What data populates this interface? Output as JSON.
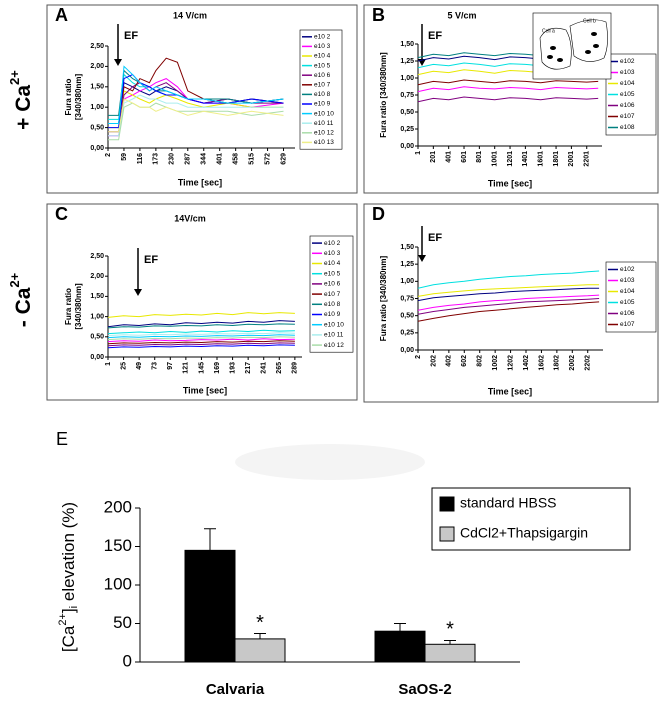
{
  "row_labels": [
    [
      "+ Ca",
      "2+"
    ],
    [
      "- Ca",
      "2+"
    ]
  ],
  "chart_data": [
    {
      "type": "line",
      "panel_label": "A",
      "title": "14 V/cm",
      "annotation": "EF",
      "x_label": "Time [sec]",
      "y_label": [
        "Fura ratio",
        "[340/380nm]"
      ],
      "xlim": [
        2,
        670
      ],
      "xticks": [
        2,
        59,
        116,
        173,
        230,
        287,
        344,
        401,
        458,
        515,
        572,
        629
      ],
      "ylim": [
        0,
        2.5
      ],
      "yticks": [
        {
          "value": 0,
          "label": "0,00"
        },
        {
          "value": 0.5,
          "label": "0,50"
        },
        {
          "value": 1,
          "label": "1,00"
        },
        {
          "value": 1.5,
          "label": "1,50"
        },
        {
          "value": 2,
          "label": "2,00"
        },
        {
          "value": 2.5,
          "label": "2,50"
        }
      ],
      "x": [
        2,
        40,
        59,
        90,
        116,
        150,
        173,
        210,
        250,
        287,
        344,
        430,
        515,
        629
      ],
      "series": [
        {
          "name": "e10 2",
          "color": "#000080",
          "values": [
            0.6,
            0.6,
            1.6,
            1.5,
            1.4,
            1.3,
            1.4,
            1.5,
            1.4,
            1.2,
            1.1,
            1.2,
            1.1,
            1.2
          ]
        },
        {
          "name": "e10 3",
          "color": "#ff00ff",
          "values": [
            0.3,
            0.3,
            1.2,
            1.3,
            1.4,
            1.5,
            1.6,
            1.7,
            1.5,
            1.2,
            1.1,
            1.1,
            1.0,
            1.1
          ]
        },
        {
          "name": "e10 4",
          "color": "#e8e800",
          "values": [
            0.5,
            0.5,
            1.4,
            1.3,
            1.2,
            1.1,
            1.2,
            1.3,
            1.2,
            1.1,
            1.0,
            1.1,
            1.0,
            1.0
          ]
        },
        {
          "name": "e10 5",
          "color": "#00e0e0",
          "values": [
            0.7,
            0.7,
            1.8,
            1.6,
            1.5,
            1.5,
            1.4,
            1.3,
            1.3,
            1.2,
            1.2,
            1.1,
            1.2,
            1.1
          ]
        },
        {
          "name": "e10 6",
          "color": "#800080",
          "values": [
            0.4,
            0.4,
            1.3,
            1.5,
            1.6,
            1.4,
            1.5,
            1.6,
            1.4,
            1.2,
            1.1,
            1.2,
            1.1,
            1.1
          ]
        },
        {
          "name": "e10 7",
          "color": "#800000",
          "values": [
            0.6,
            0.6,
            1.5,
            1.4,
            1.7,
            1.6,
            1.9,
            2.2,
            2.1,
            1.4,
            1.2,
            1.1,
            1.2,
            1.1
          ]
        },
        {
          "name": "e10 8",
          "color": "#008080",
          "values": [
            0.8,
            0.8,
            1.9,
            1.7,
            1.6,
            1.5,
            1.4,
            1.4,
            1.3,
            1.2,
            1.2,
            1.2,
            1.1,
            1.2
          ]
        },
        {
          "name": "e10 9",
          "color": "#0000ff",
          "values": [
            0.5,
            0.5,
            1.7,
            1.8,
            1.6,
            1.5,
            1.4,
            1.3,
            1.3,
            1.2,
            1.1,
            1.1,
            1.2,
            1.1
          ]
        },
        {
          "name": "e10 10",
          "color": "#00ccff",
          "values": [
            0.6,
            0.6,
            2.0,
            1.8,
            1.6,
            1.4,
            1.5,
            1.4,
            1.3,
            1.2,
            1.2,
            1.1,
            1.1,
            1.2
          ]
        },
        {
          "name": "e10 11",
          "color": "#aaeeee",
          "values": [
            0.3,
            0.3,
            1.1,
            1.2,
            1.3,
            1.2,
            1.2,
            1.1,
            1.1,
            1.0,
            1.0,
            1.0,
            1.0,
            1.0
          ]
        },
        {
          "name": "e10 12",
          "color": "#aaddaa",
          "values": [
            0.2,
            0.2,
            1.0,
            1.1,
            1.0,
            1.0,
            1.1,
            1.0,
            0.9,
            0.9,
            0.9,
            0.9,
            0.8,
            0.9
          ]
        },
        {
          "name": "e10 13",
          "color": "#eeee88",
          "values": [
            0.4,
            0.4,
            1.2,
            1.1,
            1.0,
            1.0,
            0.9,
            1.0,
            0.9,
            0.8,
            0.9,
            0.8,
            0.9,
            0.8
          ]
        }
      ]
    },
    {
      "type": "line",
      "panel_label": "B",
      "title": "5 V/cm",
      "annotation": "EF",
      "inset_labels": [
        "Cell a",
        "Cell b"
      ],
      "x_label": "Time [sec]",
      "y_label": [
        "Fura ratio [340/380nm]"
      ],
      "xlim": [
        1,
        2400
      ],
      "xticks": [
        1,
        201,
        401,
        601,
        801,
        1001,
        1201,
        1401,
        1601,
        1801,
        2001,
        2201
      ],
      "ylim": [
        0,
        1.5
      ],
      "yticks": [
        {
          "value": 0,
          "label": "0,00"
        },
        {
          "value": 0.25,
          "label": "0,25"
        },
        {
          "value": 0.5,
          "label": "0,50"
        },
        {
          "value": 0.75,
          "label": "0,75"
        },
        {
          "value": 1,
          "label": "1,00"
        },
        {
          "value": 1.25,
          "label": "1,25"
        },
        {
          "value": 1.5,
          "label": "1,50"
        }
      ],
      "x": [
        1,
        201,
        401,
        601,
        801,
        1001,
        1201,
        1401,
        1601,
        1801,
        2001,
        2201,
        2350
      ],
      "series": [
        {
          "name": "e102",
          "color": "#000080",
          "values": [
            1.25,
            1.3,
            1.28,
            1.32,
            1.3,
            1.27,
            1.31,
            1.3,
            1.28,
            1.32,
            1.3,
            1.29,
            1.3
          ]
        },
        {
          "name": "e103",
          "color": "#ff00ff",
          "values": [
            0.8,
            0.85,
            0.83,
            0.87,
            0.85,
            0.84,
            0.86,
            0.85,
            0.83,
            0.86,
            0.85,
            0.84,
            0.85
          ]
        },
        {
          "name": "e104",
          "color": "#e8e800",
          "values": [
            1.05,
            1.1,
            1.08,
            1.12,
            1.1,
            1.07,
            1.11,
            1.1,
            1.08,
            1.12,
            1.1,
            1.09,
            1.1
          ]
        },
        {
          "name": "e105",
          "color": "#00e0e0",
          "values": [
            1.15,
            1.2,
            1.18,
            1.22,
            1.2,
            1.17,
            1.21,
            1.2,
            1.18,
            1.22,
            1.2,
            1.19,
            1.2
          ]
        },
        {
          "name": "e106",
          "color": "#800080",
          "values": [
            0.65,
            0.7,
            0.68,
            0.72,
            0.7,
            0.68,
            0.71,
            0.7,
            0.68,
            0.71,
            0.7,
            0.69,
            0.7
          ]
        },
        {
          "name": "e107",
          "color": "#800000",
          "values": [
            0.9,
            0.95,
            0.93,
            0.97,
            0.95,
            0.93,
            0.96,
            0.95,
            0.93,
            0.96,
            0.95,
            0.94,
            0.95
          ]
        },
        {
          "name": "e108",
          "color": "#008080",
          "values": [
            1.3,
            1.35,
            1.33,
            1.37,
            1.35,
            1.33,
            1.36,
            1.35,
            1.33,
            1.36,
            1.35,
            1.34,
            1.35
          ]
        }
      ]
    },
    {
      "type": "line",
      "panel_label": "C",
      "title": "14V/cm",
      "annotation": "EF",
      "x_label": "Time [sec]",
      "y_label": [
        "Fura ratio",
        "[340/380nm]"
      ],
      "xlim": [
        1,
        300
      ],
      "xticks": [
        1,
        25,
        49,
        73,
        97,
        121,
        145,
        169,
        193,
        217,
        241,
        265,
        289
      ],
      "ylim": [
        0,
        2.5
      ],
      "yticks": [
        {
          "value": 0,
          "label": "0,00"
        },
        {
          "value": 0.5,
          "label": "0,50"
        },
        {
          "value": 1,
          "label": "1,00"
        },
        {
          "value": 1.5,
          "label": "1,50"
        },
        {
          "value": 2,
          "label": "2,00"
        },
        {
          "value": 2.5,
          "label": "2,50"
        }
      ],
      "x": [
        1,
        25,
        49,
        73,
        97,
        121,
        145,
        169,
        193,
        217,
        241,
        265,
        289
      ],
      "series": [
        {
          "name": "e10 2",
          "color": "#000080",
          "values": [
            0.75,
            0.8,
            0.78,
            0.82,
            0.8,
            0.85,
            0.83,
            0.86,
            0.84,
            0.88,
            0.86,
            0.9,
            0.88
          ]
        },
        {
          "name": "e10 3",
          "color": "#ff00ff",
          "values": [
            0.38,
            0.4,
            0.39,
            0.42,
            0.4,
            0.41,
            0.43,
            0.42,
            0.44,
            0.42,
            0.45,
            0.43,
            0.44
          ]
        },
        {
          "name": "e10 4",
          "color": "#e8e800",
          "values": [
            0.98,
            1.02,
            1.0,
            1.05,
            1.03,
            1.06,
            1.04,
            1.08,
            1.05,
            1.1,
            1.07,
            1.1,
            1.08
          ]
        },
        {
          "name": "e10 5",
          "color": "#00e0e0",
          "values": [
            0.58,
            0.6,
            0.62,
            0.6,
            0.63,
            0.61,
            0.64,
            0.62,
            0.65,
            0.63,
            0.66,
            0.64,
            0.65
          ]
        },
        {
          "name": "e10 6",
          "color": "#800080",
          "values": [
            0.28,
            0.3,
            0.29,
            0.31,
            0.3,
            0.32,
            0.31,
            0.33,
            0.32,
            0.34,
            0.33,
            0.35,
            0.34
          ]
        },
        {
          "name": "e10 7",
          "color": "#800000",
          "values": [
            0.33,
            0.35,
            0.34,
            0.36,
            0.35,
            0.37,
            0.36,
            0.38,
            0.37,
            0.39,
            0.38,
            0.4,
            0.39
          ]
        },
        {
          "name": "e10 8",
          "color": "#008080",
          "values": [
            0.72,
            0.75,
            0.74,
            0.77,
            0.76,
            0.78,
            0.77,
            0.8,
            0.78,
            0.81,
            0.8,
            0.82,
            0.81
          ]
        },
        {
          "name": "e10 9",
          "color": "#0000ff",
          "values": [
            0.23,
            0.25,
            0.24,
            0.26,
            0.25,
            0.27,
            0.26,
            0.28,
            0.27,
            0.29,
            0.28,
            0.3,
            0.29
          ]
        },
        {
          "name": "e10 10",
          "color": "#00ccff",
          "values": [
            0.48,
            0.5,
            0.49,
            0.51,
            0.5,
            0.52,
            0.51,
            0.53,
            0.52,
            0.54,
            0.53,
            0.55,
            0.54
          ]
        },
        {
          "name": "e10 11",
          "color": "#aaeeee",
          "values": [
            0.53,
            0.55,
            0.54,
            0.56,
            0.55,
            0.57,
            0.56,
            0.58,
            0.57,
            0.59,
            0.58,
            0.6,
            0.59
          ]
        },
        {
          "name": "e10 12",
          "color": "#aaddaa",
          "values": [
            0.43,
            0.45,
            0.44,
            0.46,
            0.45,
            0.47,
            0.46,
            0.48,
            0.47,
            0.49,
            0.48,
            0.5,
            0.49
          ]
        }
      ]
    },
    {
      "type": "line",
      "panel_label": "D",
      "annotation": "EF",
      "x_label": "Time [sec]",
      "y_label": [
        "Fura ratio [340/380nm]"
      ],
      "xlim": [
        2,
        2400
      ],
      "xticks": [
        2,
        202,
        402,
        602,
        802,
        1002,
        1202,
        1402,
        1602,
        1802,
        2002,
        2202
      ],
      "ylim": [
        0,
        1.5
      ],
      "yticks": [
        {
          "value": 0,
          "label": "0,00"
        },
        {
          "value": 0.25,
          "label": "0,25"
        },
        {
          "value": 0.5,
          "label": "0,50"
        },
        {
          "value": 0.75,
          "label": "0,75"
        },
        {
          "value": 1,
          "label": "1,00"
        },
        {
          "value": 1.25,
          "label": "1,25"
        },
        {
          "value": 1.5,
          "label": "1,50"
        }
      ],
      "x": [
        2,
        202,
        402,
        602,
        802,
        1002,
        1202,
        1402,
        1602,
        1802,
        2002,
        2202,
        2350
      ],
      "series": [
        {
          "name": "e102",
          "color": "#000080",
          "values": [
            0.72,
            0.76,
            0.78,
            0.8,
            0.82,
            0.83,
            0.85,
            0.86,
            0.87,
            0.88,
            0.89,
            0.9,
            0.9
          ]
        },
        {
          "name": "e103",
          "color": "#ff00ff",
          "values": [
            0.58,
            0.62,
            0.65,
            0.67,
            0.7,
            0.72,
            0.73,
            0.75,
            0.76,
            0.77,
            0.78,
            0.79,
            0.8
          ]
        },
        {
          "name": "e104",
          "color": "#e8e800",
          "values": [
            0.78,
            0.82,
            0.84,
            0.86,
            0.88,
            0.89,
            0.9,
            0.91,
            0.92,
            0.93,
            0.94,
            0.95,
            0.95
          ]
        },
        {
          "name": "e105",
          "color": "#00e0e0",
          "values": [
            0.9,
            0.95,
            0.98,
            1.0,
            1.03,
            1.05,
            1.07,
            1.08,
            1.1,
            1.11,
            1.12,
            1.14,
            1.15
          ]
        },
        {
          "name": "e106",
          "color": "#800080",
          "values": [
            0.52,
            0.56,
            0.59,
            0.62,
            0.64,
            0.66,
            0.68,
            0.7,
            0.71,
            0.72,
            0.73,
            0.74,
            0.75
          ]
        },
        {
          "name": "e107",
          "color": "#800000",
          "values": [
            0.42,
            0.46,
            0.5,
            0.53,
            0.56,
            0.58,
            0.6,
            0.62,
            0.64,
            0.66,
            0.67,
            0.69,
            0.7
          ]
        }
      ]
    },
    {
      "type": "bar",
      "panel_label": "E",
      "y_label": [
        "[Ca",
        "2+",
        "]",
        "i",
        " elevation (%)"
      ],
      "categories": [
        "Calvaria",
        "SaOS-2"
      ],
      "ylim": [
        0,
        200
      ],
      "yticks": [
        0,
        50,
        100,
        150,
        200
      ],
      "series": [
        {
          "name": "standard HBSS",
          "color": "#000000",
          "values": [
            145,
            40
          ],
          "errors": [
            28,
            10
          ]
        },
        {
          "name": "CdCl2+Thapsigargin",
          "color": "#c8c8c8",
          "values": [
            30,
            23
          ],
          "errors": [
            7,
            5
          ],
          "value_labels": [
            "*",
            "*"
          ]
        }
      ]
    }
  ]
}
